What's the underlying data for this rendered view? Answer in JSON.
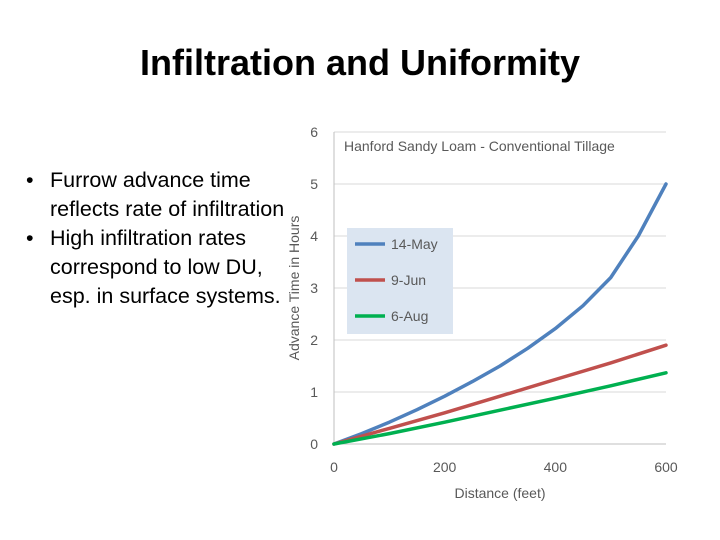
{
  "slide": {
    "title": "Infiltration and Uniformity",
    "bullets": [
      {
        "marker": "•",
        "text": "Furrow advance time reflects rate of infiltration"
      },
      {
        "marker": "•",
        "text": " High infiltration rates correspond  to low DU, esp. in surface systems."
      }
    ]
  },
  "chart_data": {
    "type": "line",
    "title": "Hanford Sandy Loam  -  Conventional Tillage",
    "xlabel": "Distance (feet)",
    "ylabel": "Advance Time in Hours",
    "xlim": [
      0,
      600
    ],
    "ylim": [
      0,
      6
    ],
    "xticks": [
      0,
      200,
      400,
      600
    ],
    "yticks": [
      0,
      1,
      2,
      3,
      4,
      5,
      6
    ],
    "grid": "horizontal",
    "legend_position": "left-middle",
    "series": [
      {
        "name": "14-May",
        "color": "#4f81bd",
        "x": [
          0,
          50,
          100,
          150,
          200,
          250,
          300,
          350,
          400,
          450,
          500,
          550,
          600
        ],
        "y": [
          0,
          0.2,
          0.42,
          0.66,
          0.92,
          1.2,
          1.5,
          1.84,
          2.22,
          2.66,
          3.2,
          4.0,
          5.0
        ]
      },
      {
        "name": "9-Jun",
        "color": "#c0504d",
        "x": [
          0,
          100,
          200,
          300,
          400,
          500,
          600
        ],
        "y": [
          0,
          0.3,
          0.6,
          0.92,
          1.24,
          1.56,
          1.9
        ]
      },
      {
        "name": "6-Aug",
        "color": "#00b050",
        "x": [
          0,
          100,
          200,
          300,
          400,
          500,
          600
        ],
        "y": [
          0,
          0.2,
          0.42,
          0.65,
          0.88,
          1.12,
          1.37
        ]
      }
    ]
  }
}
